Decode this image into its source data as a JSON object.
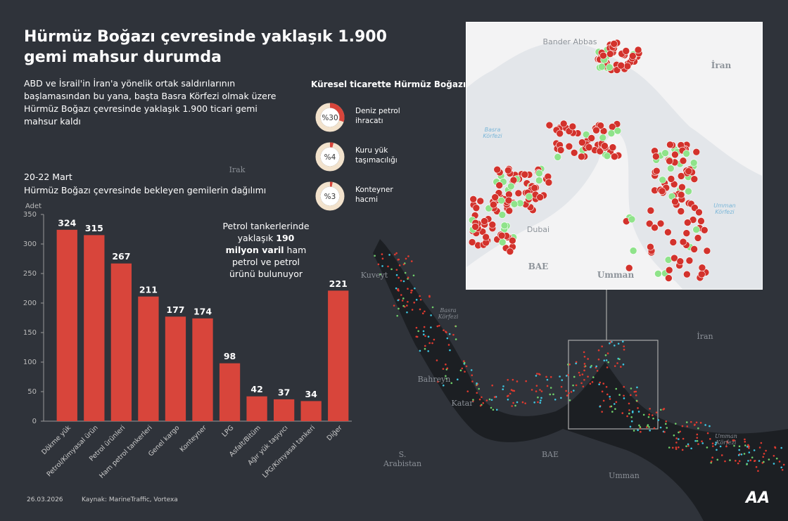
{
  "header": {
    "title": "Hürmüz Boğazı çevresinde yaklaşık 1.900 gemi mahsur durumda",
    "subtitle": "ABD ve İsrail'in İran'a yönelik ortak saldırılarının başlamasından bu yana, başta Basra Körfezi olmak üzere Hürmüz Boğazı çevresinde yaklaşık 1.900 ticari gemi mahsur kaldı"
  },
  "chart_data": [
    {
      "type": "bar",
      "title": "20-22 Mart",
      "subtitle": "Hürmüz Boğazı çevresinde bekleyen gemilerin dağılımı",
      "y_label": "Adet",
      "categories": [
        "Dökme yük",
        "Petrol/Kimyasal ürün",
        "Petrol ürünleri",
        "Ham petrol tankerleri",
        "Genel kargo",
        "Konteyner",
        "LPG",
        "Asfalt/Bitüm",
        "Ağır yük taşıyıcı",
        "LPG/Kimyasal tankeri",
        "Diğer"
      ],
      "values": [
        324,
        315,
        267,
        211,
        177,
        174,
        98,
        42,
        37,
        34,
        221
      ],
      "color": "#d8453b",
      "ylim": [
        0,
        350
      ],
      "yticks": [
        0,
        50,
        100,
        150,
        200,
        250,
        300,
        350
      ],
      "annotation": [
        "Petrol tankerlerinde yaklaşık ",
        "190 milyon varil",
        " ham petrol ve petrol ürünü bulunuyor"
      ]
    },
    {
      "type": "donut",
      "title": "Küresel ticarette Hürmüz Boğazı",
      "categories": [
        "Deniz petrol ihracatı",
        "Kuru yük taşımacılığı",
        "Konteyner hacmi"
      ],
      "values": [
        30,
        4,
        3
      ],
      "value_labels": [
        "%30",
        "%4",
        "%3"
      ],
      "color": "#d8453b",
      "track_color": "#f2e2cc"
    }
  ],
  "map": {
    "labels": [
      "Irak",
      "Kuveyt",
      "Basra Körfezi",
      "Bahreyn",
      "Katar",
      "S. Arabistan",
      "BAE",
      "Umman",
      "İran",
      "Umman Körfezi"
    ],
    "inset_labels": [
      "Bander Abbas",
      "İran",
      "Basra Körfezi",
      "Dubai",
      "BAE",
      "Umman",
      "Umman Körfezi"
    ]
  },
  "footer": {
    "date": "26.03.2026",
    "source": "Kaynak: MarineTraffic, Vortexa",
    "logo": "AA"
  }
}
